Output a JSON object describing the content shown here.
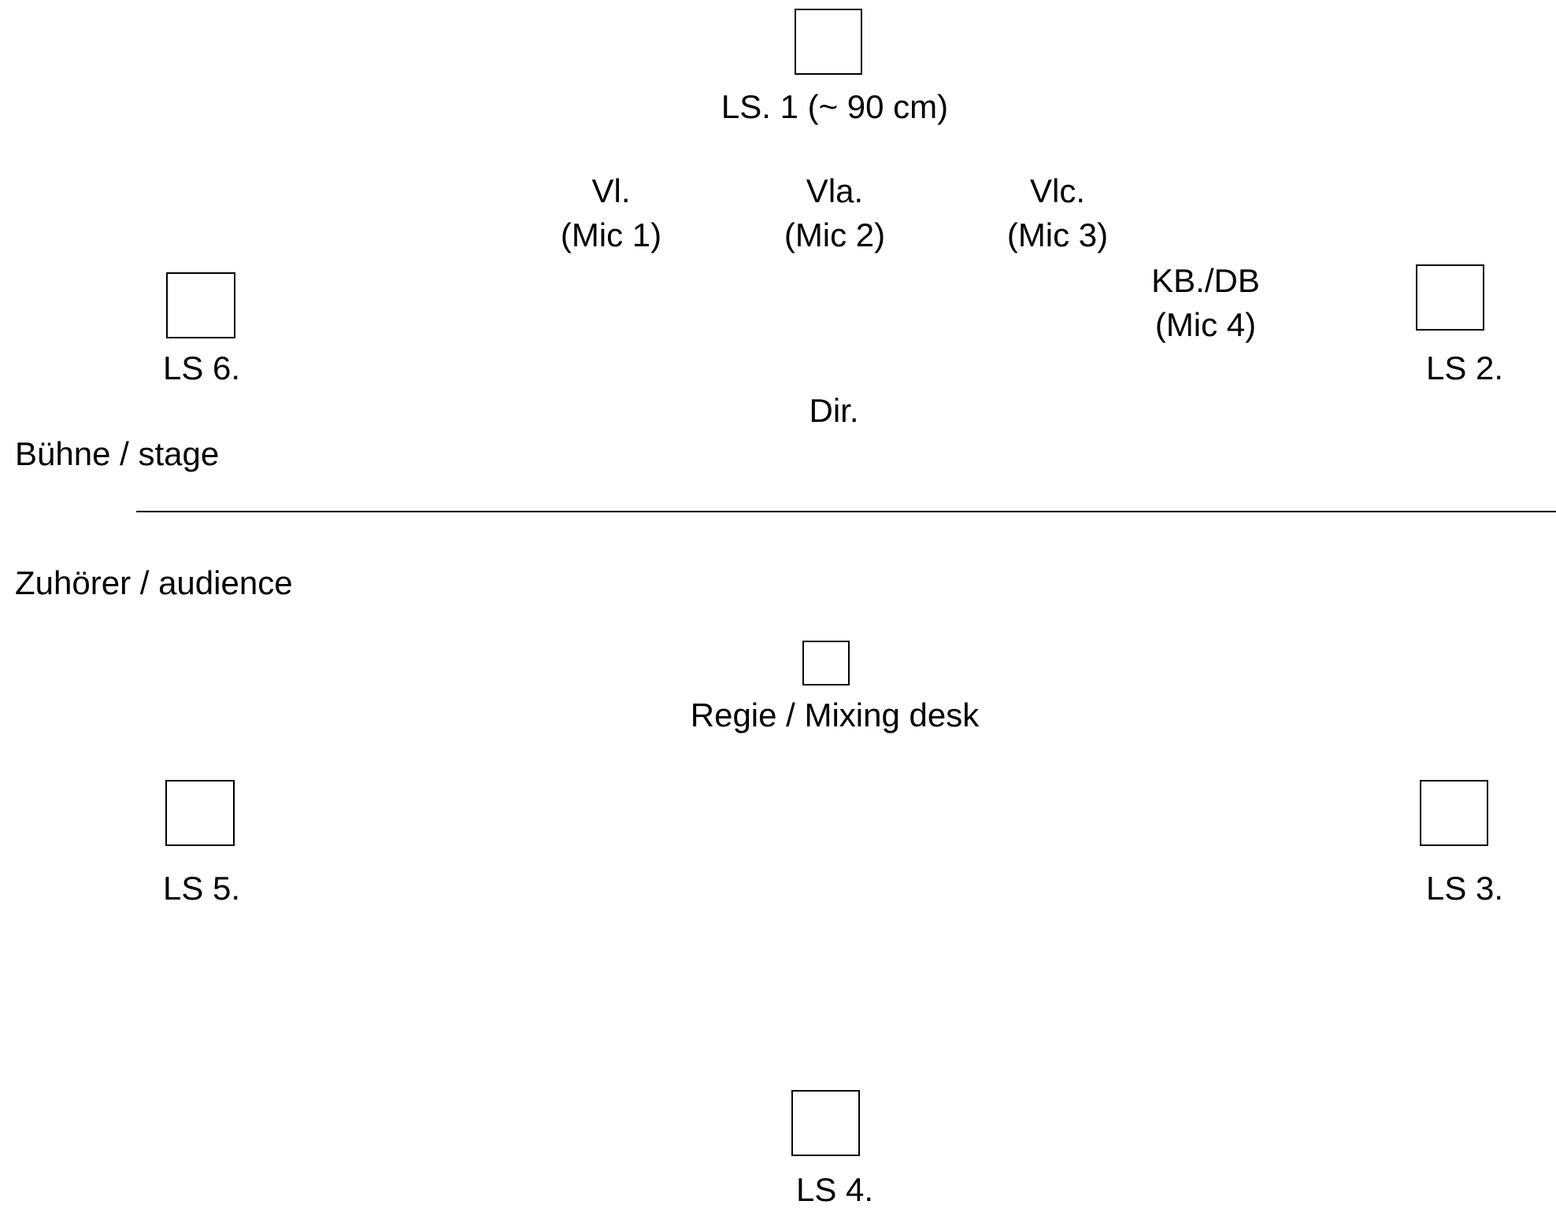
{
  "speakers": [
    {
      "id": "ls1",
      "label": "LS. 1 (~ 90 cm)"
    },
    {
      "id": "ls2",
      "label": "LS 2."
    },
    {
      "id": "ls3",
      "label": "LS 3."
    },
    {
      "id": "ls4",
      "label": "LS 4."
    },
    {
      "id": "ls5",
      "label": "LS 5."
    },
    {
      "id": "ls6",
      "label": "LS 6."
    }
  ],
  "instruments": [
    {
      "id": "vl",
      "name": "Vl.",
      "mic": "(Mic 1)"
    },
    {
      "id": "vla",
      "name": "Vla.",
      "mic": "(Mic 2)"
    },
    {
      "id": "vlc",
      "name": "Vlc.",
      "mic": "(Mic 3)"
    },
    {
      "id": "kb",
      "name": "KB./DB",
      "mic": "(Mic 4)"
    }
  ],
  "conductor": "Dir.",
  "areas": {
    "stage": "Bühne / stage",
    "audience": "Zuhörer / audience"
  },
  "mixing_desk": "Regie / Mixing desk"
}
